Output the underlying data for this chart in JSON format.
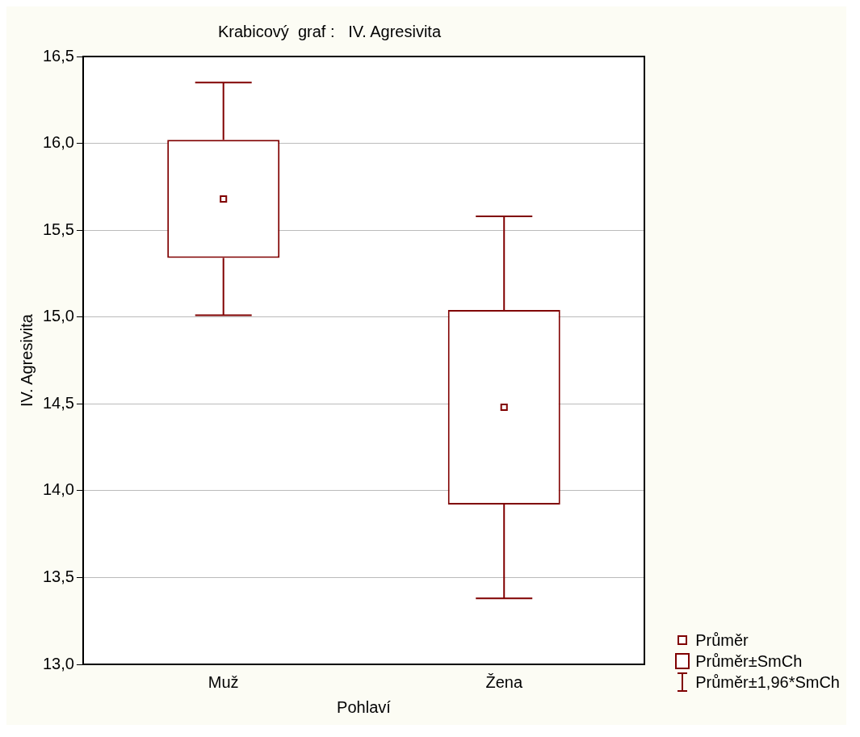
{
  "chart_data": {
    "type": "box",
    "title": "Krabicový  graf :   IV. Agresivita",
    "xlabel": "Pohlaví",
    "ylabel": "IV. Agresivita",
    "categories": [
      "Muž",
      "Žena"
    ],
    "boxes": [
      {
        "low": 15.01,
        "q1": 15.34,
        "median": 15.68,
        "q3": 16.02,
        "high": 16.35
      },
      {
        "low": 13.38,
        "q1": 13.92,
        "median": 14.48,
        "q3": 15.04,
        "high": 15.58
      }
    ],
    "color": "#800000",
    "ylim": [
      13,
      16.5
    ],
    "yticks": [
      {
        "value": 13,
        "label": "13,0"
      },
      {
        "value": 13.5,
        "label": "13,5"
      },
      {
        "value": 14,
        "label": "14,0"
      },
      {
        "value": 14.5,
        "label": "14,5"
      },
      {
        "value": 15,
        "label": "15,0"
      },
      {
        "value": 15.5,
        "label": "15,5"
      },
      {
        "value": 16,
        "label": "16,0"
      },
      {
        "value": 16.5,
        "label": "16,5"
      }
    ],
    "grid": "y",
    "marker": "square",
    "annotations": [
      "Průměr",
      "Průměr±SmCh",
      "Průměr±1,96*SmCh"
    ]
  }
}
